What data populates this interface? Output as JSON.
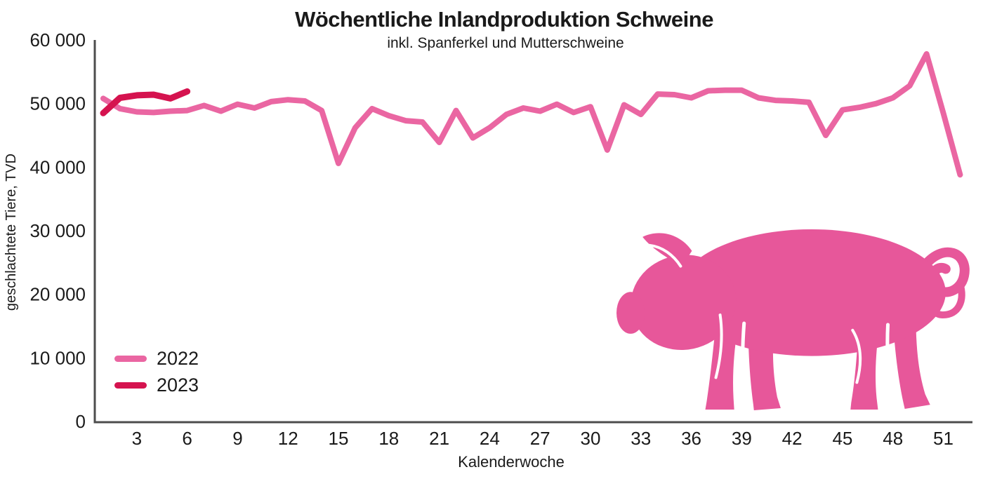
{
  "title": "Wöchentliche Inlandproduktion Schweine",
  "subtitle": "inkl. Spanferkel und Mutterschweine",
  "chart_data": {
    "type": "line",
    "title": "Wöchentliche Inlandproduktion Schweine",
    "subtitle": "inkl. Spanferkel und Mutterschweine",
    "xlabel": "Kalenderwoche",
    "ylabel": "geschlachtete Tiere, TVD",
    "x_unit": "Kalenderwoche (week of year)",
    "x_start_week": 1,
    "x_step": 1,
    "ylim": [
      0,
      60000
    ],
    "grid": false,
    "legend_position": "lower-left",
    "xticks": [
      3,
      6,
      9,
      12,
      15,
      18,
      21,
      24,
      27,
      30,
      33,
      36,
      39,
      42,
      45,
      48,
      51
    ],
    "yticks": {
      "values": [
        0,
        10000,
        20000,
        30000,
        40000,
        50000,
        60000
      ],
      "labels": [
        "0",
        "10 000",
        "20 000",
        "30 000",
        "40 000",
        "50 000",
        "60 000"
      ]
    },
    "axis_color": "#4d4d4d",
    "text_color": "#1a1a1a",
    "series": [
      {
        "name": "2022",
        "color": "#ea66a2",
        "weeks": "1-52",
        "values": [
          50800,
          49200,
          48700,
          48600,
          48800,
          48900,
          49700,
          48800,
          49900,
          49300,
          50300,
          50600,
          50400,
          48900,
          40600,
          46200,
          49200,
          48100,
          47300,
          47100,
          43900,
          48900,
          44600,
          46200,
          48300,
          49300,
          48800,
          49900,
          48600,
          49500,
          42700,
          49800,
          48300,
          51500,
          51400,
          50900,
          52000,
          52100,
          52100,
          50900,
          50500,
          50400,
          50200,
          45000,
          49000,
          49400,
          50000,
          50900,
          52800,
          57800,
          48500,
          38800
        ]
      },
      {
        "name": "2023",
        "color": "#d5134f",
        "weeks": "1-6",
        "values": [
          48500,
          50900,
          51300,
          51400,
          50800,
          51900
        ]
      }
    ]
  },
  "legend": {
    "items": [
      {
        "label": "2022"
      },
      {
        "label": "2023"
      }
    ]
  },
  "decor": {
    "pig_color": "#e7579a",
    "pig_icon": "pig-silhouette-icon"
  }
}
